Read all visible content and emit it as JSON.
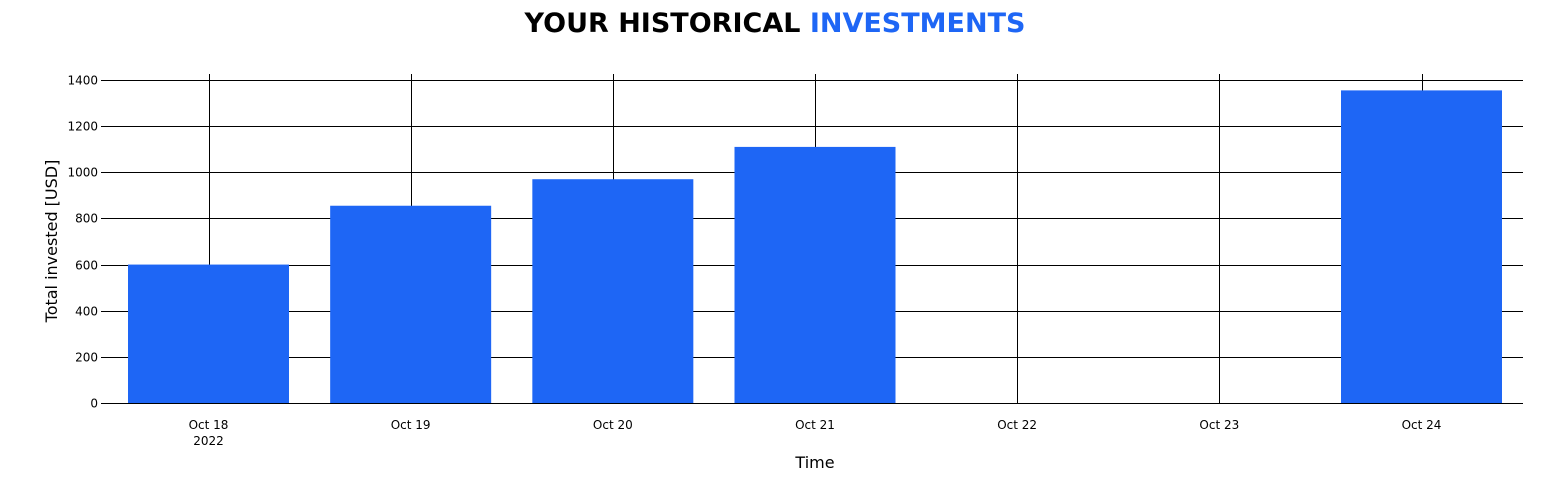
{
  "chart_data": {
    "type": "bar",
    "title_parts": [
      "YOUR HISTORICAL ",
      "INVESTMENTS"
    ],
    "title_colors": [
      "#000000",
      "#1e66f5"
    ],
    "xlabel": "Time",
    "ylabel": "Total invested [USD]",
    "categories": [
      "Oct 18",
      "Oct 19",
      "Oct 20",
      "Oct 21",
      "Oct 22",
      "Oct 23",
      "Oct 24"
    ],
    "year_label": "2022",
    "values": [
      600,
      855,
      970,
      1110,
      0,
      0,
      1355
    ],
    "ylim": [
      0,
      1420
    ],
    "yticks": [
      0,
      200,
      400,
      600,
      800,
      1000,
      1200,
      1400
    ],
    "grid": true,
    "bar_color": "#1e66f5"
  }
}
